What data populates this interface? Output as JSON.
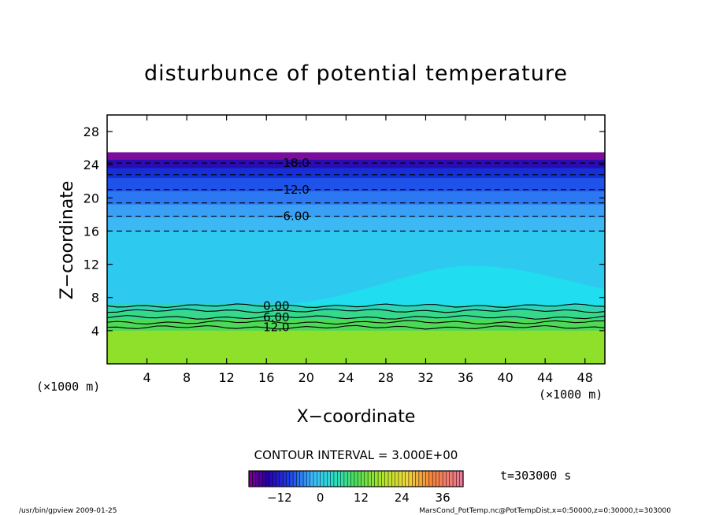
{
  "chart_data": {
    "type": "heatmap",
    "title": "disturbunce of potential temperature",
    "xlabel": "X−coordinate",
    "ylabel": "Z−coordinate",
    "x_unit_left": "(×1000 m)",
    "x_unit_right": "(×1000 m)",
    "xlim": [
      0,
      50
    ],
    "ylim": [
      0,
      30
    ],
    "x_ticks": [
      4,
      8,
      12,
      16,
      20,
      24,
      28,
      32,
      36,
      40,
      44,
      48
    ],
    "y_ticks": [
      4,
      8,
      12,
      16,
      20,
      24,
      28
    ],
    "contour_interval_text": "CONTOUR INTERVAL = 3.000E+00",
    "contour_interval": 3.0,
    "contour_labels": [
      {
        "text": "−18.0",
        "x": 18.5,
        "y": 24.2
      },
      {
        "text": "−12.0",
        "x": 18.5,
        "y": 21.0
      },
      {
        "text": "−6.00",
        "x": 18.5,
        "y": 17.8
      },
      {
        "text": "0.00",
        "x": 17.0,
        "y": 7.0
      },
      {
        "text": "6.00",
        "x": 17.0,
        "y": 5.6
      },
      {
        "text": "12.0",
        "x": 17.0,
        "y": 4.4
      }
    ],
    "layers": [
      {
        "z_from": 25.5,
        "z_to": 24.6,
        "value": -21,
        "color": "#7c0c9c"
      },
      {
        "z_from": 24.6,
        "z_to": 23.6,
        "value": -18,
        "color": "#2a0cb0"
      },
      {
        "z_from": 23.6,
        "z_to": 22.4,
        "value": -15,
        "color": "#1430d6"
      },
      {
        "z_from": 22.4,
        "z_to": 20.8,
        "value": -12,
        "color": "#1e52e8"
      },
      {
        "z_from": 20.8,
        "z_to": 19.2,
        "value": -9,
        "color": "#2c78f2"
      },
      {
        "z_from": 19.2,
        "z_to": 17.6,
        "value": -6,
        "color": "#3aa0f6"
      },
      {
        "z_from": 17.6,
        "z_to": 16.0,
        "value": -3,
        "color": "#3cb8f4"
      },
      {
        "z_from": 16.0,
        "z_to": 7.2,
        "value": 0,
        "color": "#2ec9ee"
      },
      {
        "z_from": 7.2,
        "z_to": 6.4,
        "value": 3,
        "color": "#2ed4b4"
      },
      {
        "z_from": 6.4,
        "z_to": 5.4,
        "value": 6,
        "color": "#36d88a"
      },
      {
        "z_from": 5.4,
        "z_to": 4.0,
        "value": 12,
        "color": "#4ed858"
      },
      {
        "z_from": 4.0,
        "z_to": 0.0,
        "value": 18,
        "color": "#8ee02a"
      }
    ],
    "dashed_contours_z": [
      24.2,
      22.8,
      21.0,
      19.4,
      17.8,
      16.0
    ],
    "solid_contours_z": [
      7.0,
      6.4,
      5.6,
      5.0,
      4.4
    ],
    "colorbar": {
      "ticks": [
        "−12",
        "0",
        "12",
        "24",
        "36"
      ],
      "tick_values": [
        -12,
        0,
        12,
        24,
        36
      ],
      "range": [
        -21,
        42
      ]
    },
    "time_label": "t=303000 s",
    "footer_left": "/usr/bin/gpview   2009-01-25",
    "footer_right": "MarsCond_PotTemp.nc@PotTempDist,x=0:50000,z=0:30000,t=303000"
  }
}
